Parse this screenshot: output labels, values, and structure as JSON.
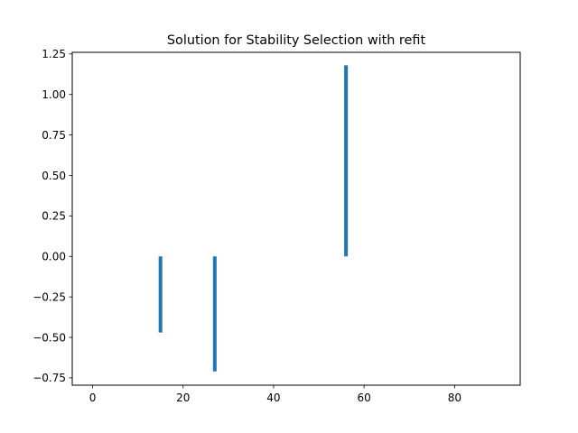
{
  "chart_data": {
    "type": "bar",
    "title": "Solution for Stability Selection with refit",
    "xlabel": "",
    "ylabel": "",
    "xlim": [
      -4.5,
      94.5
    ],
    "ylim": [
      -0.795,
      1.26
    ],
    "xticks": [
      0,
      20,
      40,
      60,
      80
    ],
    "xtick_labels": [
      "0",
      "20",
      "40",
      "60",
      "80"
    ],
    "yticks": [
      -0.75,
      -0.5,
      -0.25,
      0.0,
      0.25,
      0.5,
      0.75,
      1.0,
      1.25
    ],
    "ytick_labels": [
      "−0.75",
      "−0.50",
      "−0.25",
      "0.00",
      "0.25",
      "0.50",
      "0.75",
      "1.00",
      "1.25"
    ],
    "bar_width": 0.8,
    "grid": false,
    "color": "#1f77b4",
    "x": [
      15,
      27,
      56
    ],
    "values": [
      -0.47,
      -0.71,
      1.18
    ]
  }
}
